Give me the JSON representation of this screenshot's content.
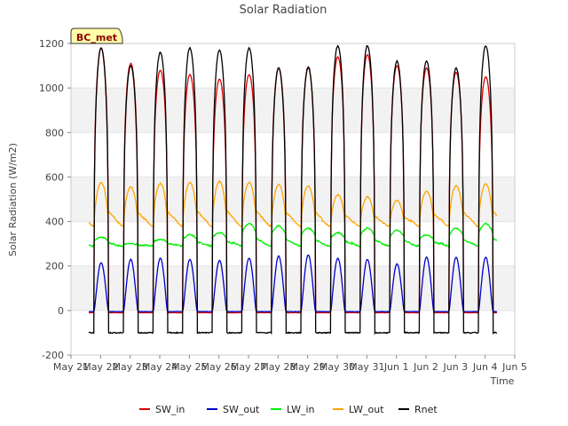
{
  "chart_data": {
    "type": "line",
    "title": "Solar Radiation",
    "xlabel": "Time",
    "ylabel": "Solar Radiation (W/m2)",
    "ylim": [
      -200,
      1200
    ],
    "yticks": [
      -200,
      0,
      200,
      400,
      600,
      800,
      1000,
      1200
    ],
    "xlim": [
      0,
      15
    ],
    "xticks": [
      0,
      1,
      2,
      3,
      4,
      5,
      6,
      7,
      8,
      9,
      10,
      11,
      12,
      13,
      14,
      15
    ],
    "xtick_labels": [
      "May 21",
      "May 22",
      "May 23",
      "May 24",
      "May 25",
      "May 26",
      "May 27",
      "May 28",
      "May 29",
      "May 30",
      "May 31",
      "Jun 1",
      "Jun 2",
      "Jun 3",
      "Jun 4",
      "Jun 5"
    ],
    "x_units": "days since May 21",
    "grid": "horizontal bands",
    "legend_position": "bottom",
    "annotation": "BC_met",
    "days": [
      1,
      2,
      3,
      4,
      5,
      6,
      7,
      8,
      9,
      10,
      11,
      12,
      13,
      14
    ],
    "series": [
      {
        "name": "SW_in",
        "color": "#dd0000",
        "daily_peak": [
          1180,
          1110,
          1080,
          1060,
          1040,
          1060,
          1090,
          1090,
          1140,
          1150,
          1100,
          1090,
          1070,
          1050
        ],
        "night_value": -10
      },
      {
        "name": "SW_out",
        "color": "#0000cc",
        "daily_peak": [
          215,
          230,
          235,
          230,
          225,
          235,
          245,
          250,
          235,
          230,
          210,
          240,
          240,
          240
        ],
        "night_value": -5
      },
      {
        "name": "LW_in",
        "color": "#00ee00",
        "daily_peak": [
          330,
          300,
          320,
          340,
          350,
          390,
          380,
          370,
          350,
          370,
          360,
          340,
          370,
          390
        ],
        "night_value": 290
      },
      {
        "name": "LW_out",
        "color": "#ffa500",
        "daily_peak": [
          575,
          555,
          570,
          575,
          580,
          575,
          565,
          560,
          520,
          510,
          495,
          535,
          560,
          570
        ],
        "night_value": 380
      },
      {
        "name": "Rnet",
        "color": "#000000",
        "daily_peak": [
          1180,
          1100,
          1160,
          1180,
          1170,
          1180,
          1090,
          1095,
          1190,
          1190,
          1120,
          1120,
          1090,
          1190
        ],
        "night_value": -100
      }
    ]
  }
}
